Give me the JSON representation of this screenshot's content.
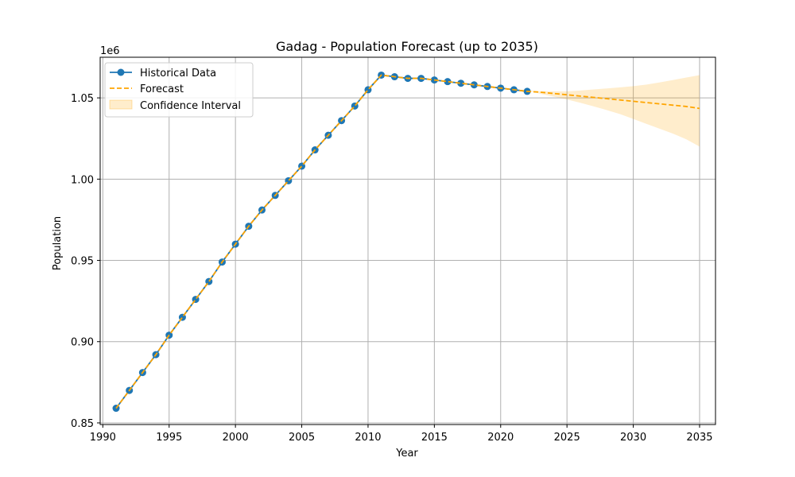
{
  "chart_data": {
    "type": "line",
    "title": "Gadag - Population Forecast (up to 2035)",
    "xlabel": "Year",
    "ylabel": "Population",
    "y_offset_label": "1e6",
    "xlim": [
      1989.8,
      2036.2
    ],
    "ylim": [
      0.849,
      1.075
    ],
    "y_scale": 1000000,
    "grid": true,
    "legend_position": "top-left",
    "x_ticks": [
      1990,
      1995,
      2000,
      2005,
      2010,
      2015,
      2020,
      2025,
      2030,
      2035
    ],
    "x_tick_labels": [
      "1990",
      "1995",
      "2000",
      "2005",
      "2010",
      "2015",
      "2020",
      "2025",
      "2030",
      "2035"
    ],
    "y_ticks": [
      0.85,
      0.9,
      0.95,
      1.0,
      1.05
    ],
    "y_tick_labels": [
      "0.85",
      "0.90",
      "0.95",
      "1.00",
      "1.05"
    ],
    "colors": {
      "historical": "#1f77b4",
      "forecast": "#ffa500",
      "confidence": "#ffa500"
    },
    "series": [
      {
        "name": "Historical Data",
        "x": [
          1991,
          1992,
          1993,
          1994,
          1995,
          1996,
          1997,
          1998,
          1999,
          2000,
          2001,
          2002,
          2003,
          2004,
          2005,
          2006,
          2007,
          2008,
          2009,
          2010,
          2011,
          2012,
          2013,
          2014,
          2015,
          2016,
          2017,
          2018,
          2019,
          2020,
          2021,
          2022
        ],
        "values": [
          0.859,
          0.87,
          0.881,
          0.892,
          0.904,
          0.915,
          0.926,
          0.937,
          0.949,
          0.96,
          0.971,
          0.981,
          0.99,
          0.999,
          1.008,
          1.018,
          1.027,
          1.036,
          1.045,
          1.055,
          1.064,
          1.063,
          1.062,
          1.062,
          1.061,
          1.06,
          1.059,
          1.058,
          1.057,
          1.056,
          1.055,
          1.054
        ]
      },
      {
        "name": "Forecast",
        "x": [
          1991,
          1992,
          1993,
          1994,
          1995,
          1996,
          1997,
          1998,
          1999,
          2000,
          2001,
          2002,
          2003,
          2004,
          2005,
          2006,
          2007,
          2008,
          2009,
          2010,
          2011,
          2012,
          2013,
          2014,
          2015,
          2016,
          2017,
          2018,
          2019,
          2020,
          2021,
          2022,
          2023,
          2024,
          2025,
          2026,
          2027,
          2028,
          2029,
          2030,
          2031,
          2032,
          2033,
          2034,
          2035
        ],
        "values": [
          0.859,
          0.87,
          0.881,
          0.892,
          0.904,
          0.915,
          0.926,
          0.937,
          0.949,
          0.96,
          0.971,
          0.981,
          0.99,
          0.999,
          1.008,
          1.018,
          1.027,
          1.036,
          1.045,
          1.055,
          1.064,
          1.063,
          1.062,
          1.062,
          1.061,
          1.06,
          1.059,
          1.058,
          1.057,
          1.056,
          1.055,
          1.054,
          1.0535,
          1.0527,
          1.0519,
          1.0511,
          1.0503,
          1.0495,
          1.0487,
          1.0479,
          1.0471,
          1.0463,
          1.0455,
          1.0447,
          1.0435
        ]
      },
      {
        "name": "Confidence Interval",
        "x": [
          2022,
          2023,
          2024,
          2025,
          2026,
          2027,
          2028,
          2029,
          2030,
          2031,
          2032,
          2033,
          2034,
          2035
        ],
        "lower": [
          1.0545,
          1.0525,
          1.0508,
          1.049,
          1.047,
          1.0448,
          1.0425,
          1.04,
          1.037,
          1.034,
          1.031,
          1.028,
          1.0245,
          1.02
        ],
        "upper": [
          1.0545,
          1.054,
          1.054,
          1.054,
          1.0545,
          1.0552,
          1.0558,
          1.0565,
          1.0572,
          1.0582,
          1.0595,
          1.061,
          1.0625,
          1.064
        ]
      }
    ]
  }
}
